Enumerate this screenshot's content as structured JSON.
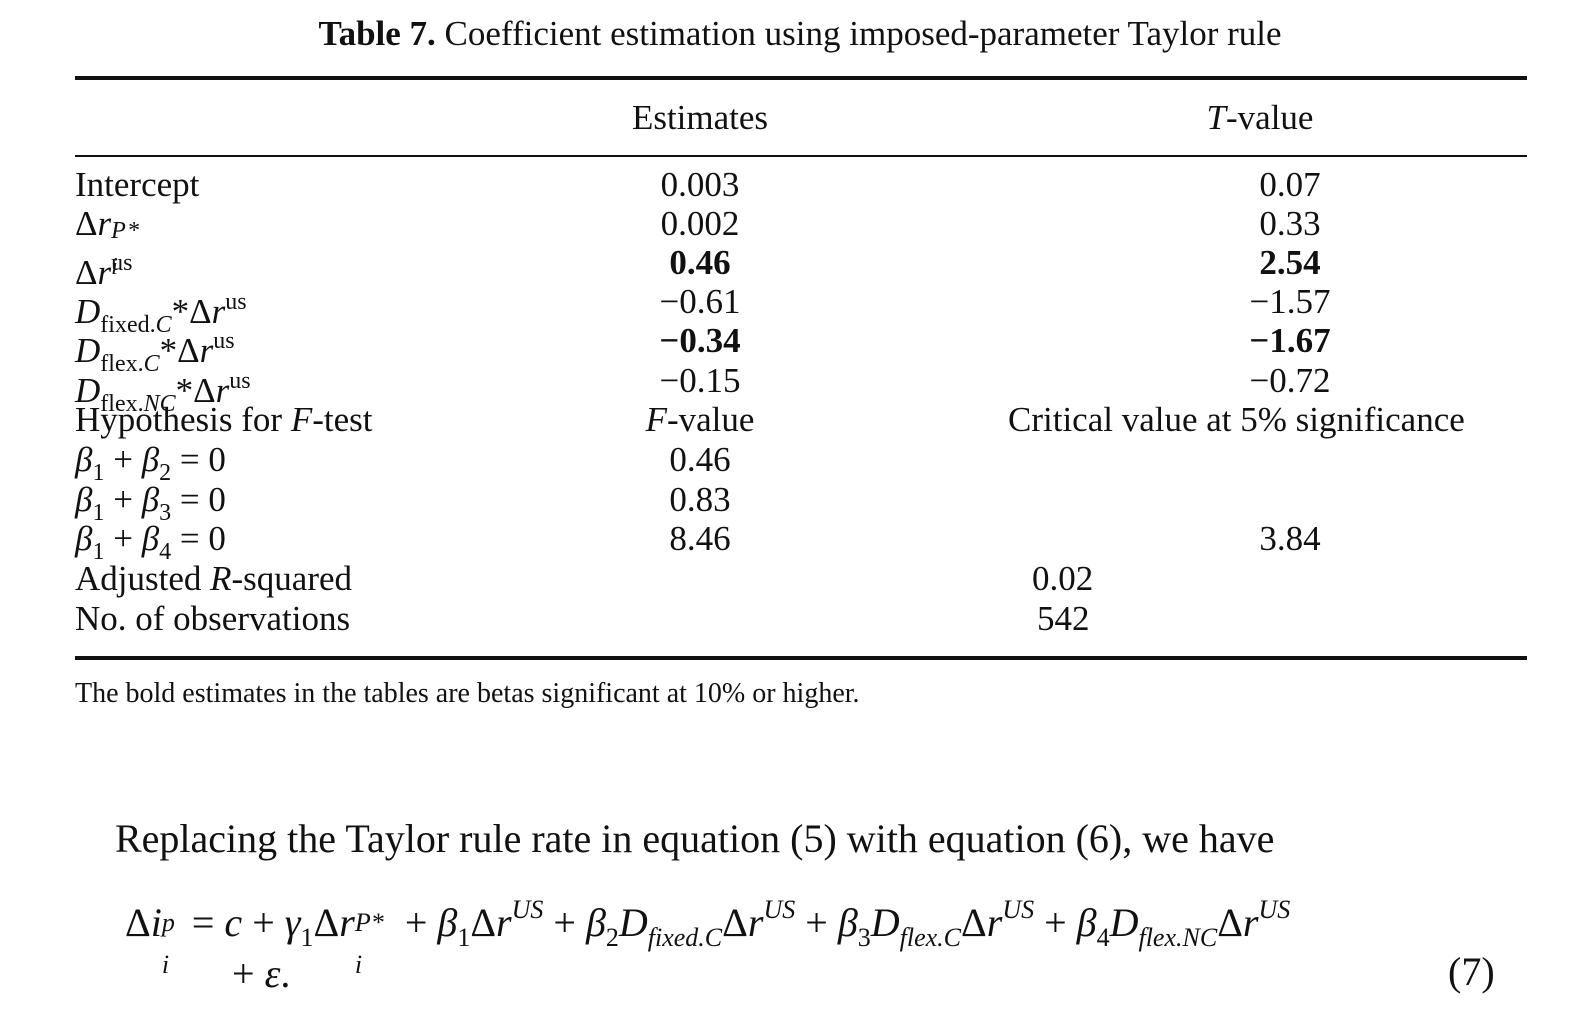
{
  "caption": {
    "label": "Table 7.",
    "title": "Coefficient estimation using imposed-parameter Taylor rule"
  },
  "columns": {
    "estimates": "Estimates",
    "tvalue_italic": "T",
    "tvalue_rest": "-value"
  },
  "rows": {
    "intercept": {
      "label": "Intercept",
      "est": "0.003",
      "tv": "0.07"
    },
    "r_p": {
      "est": "0.002",
      "tv": "0.33"
    },
    "r_us": {
      "est": "0.46",
      "tv": "2.54"
    },
    "d_fixed_c": {
      "est": "−0.61",
      "tv": "−1.57"
    },
    "d_flex_c": {
      "est": "−0.34",
      "tv": "−1.67"
    },
    "d_flex_nc": {
      "est": "−0.15",
      "tv": "−0.72"
    }
  },
  "ftest": {
    "hyp_pre": "Hypothesis for ",
    "hyp_italic": "F",
    "hyp_post": "-test",
    "fvalue_italic": "F",
    "fvalue_rest": "-value",
    "critical": "Critical value at 5% significance",
    "h1_value": "0.46",
    "h2_value": "0.83",
    "h3_value": "8.46",
    "h3_critical": "3.84"
  },
  "stats": {
    "adjr_pre": "Adjusted ",
    "adjr_italic": "R",
    "adjr_post": "-squared",
    "adjr_value": "0.02",
    "nobs_label": "No. of observations",
    "nobs_value": "542"
  },
  "note": "The bold estimates in the tables are betas significant at 10% or higher.",
  "paragraph": "Replacing the Taylor rule rate in equation (5) with equation (6), we have",
  "equation_number": "(7)"
}
